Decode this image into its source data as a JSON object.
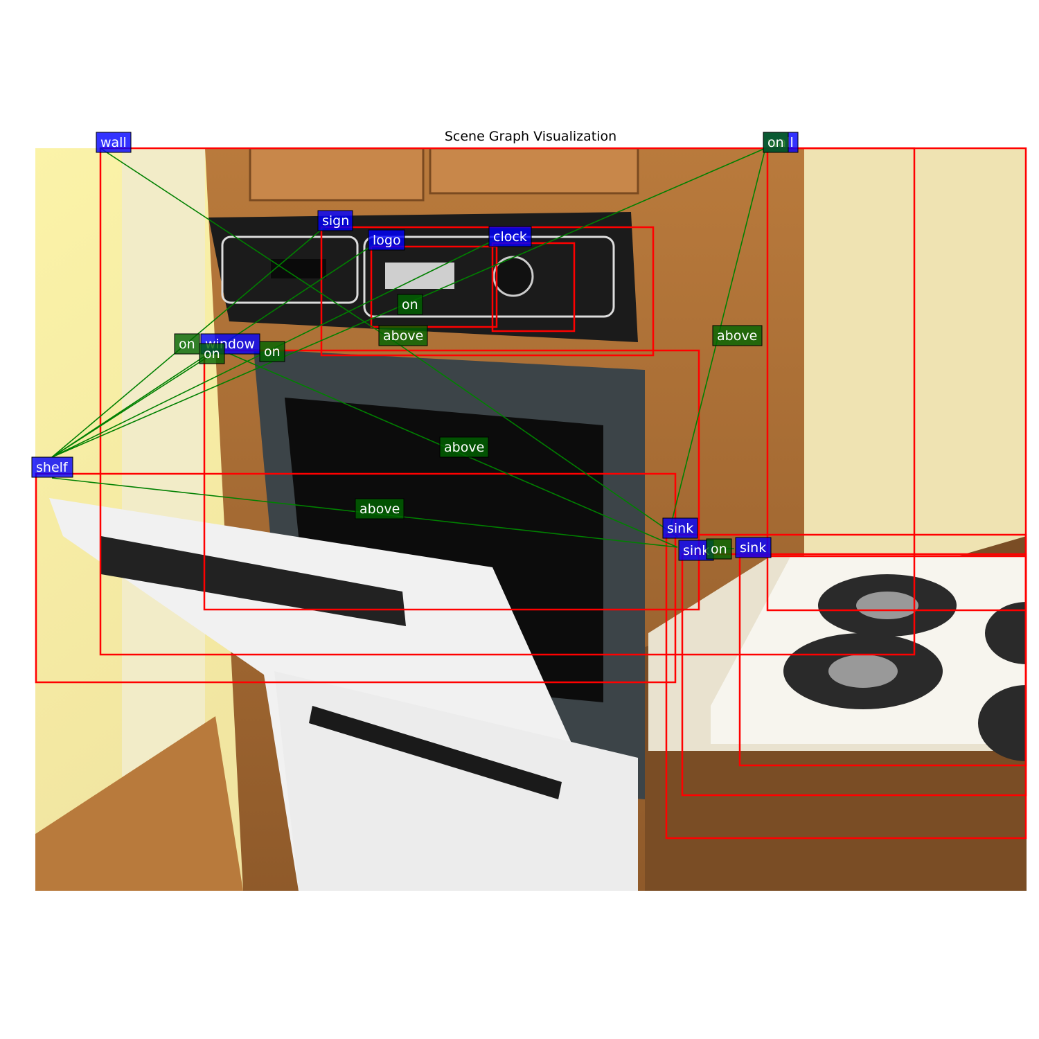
{
  "title": "Scene Graph Visualization",
  "colors": {
    "box": "#ff0000",
    "object_label_bg": "#0000ff",
    "relation_label_bg": "#006400",
    "edge": "#008000"
  },
  "objects": [
    {
      "id": "o_wall",
      "label": "wall"
    },
    {
      "id": "o_sign",
      "label": "sign"
    },
    {
      "id": "o_logo",
      "label": "logo"
    },
    {
      "id": "o_clock",
      "label": "clock"
    },
    {
      "id": "o_window",
      "label": "window"
    },
    {
      "id": "o_shelf",
      "label": "shelf"
    },
    {
      "id": "o_sink1",
      "label": "sink"
    },
    {
      "id": "o_sink2",
      "label": "sink"
    },
    {
      "id": "o_sink3",
      "label": "sink"
    },
    {
      "id": "o_wall2",
      "label": "wall"
    }
  ],
  "relations": [
    {
      "id": "r_above_logo",
      "label": "above"
    },
    {
      "id": "r_on_clock",
      "label": "on"
    },
    {
      "id": "r_on_left",
      "label": "on"
    },
    {
      "id": "r_on_mid",
      "label": "on"
    },
    {
      "id": "r_on_window",
      "label": "on"
    },
    {
      "id": "r_above_right",
      "label": "above"
    },
    {
      "id": "r_above_center",
      "label": "above"
    },
    {
      "id": "r_above_shelf",
      "label": "above"
    },
    {
      "id": "r_on_sink",
      "label": "on"
    },
    {
      "id": "r_on_top",
      "label": "on"
    }
  ]
}
